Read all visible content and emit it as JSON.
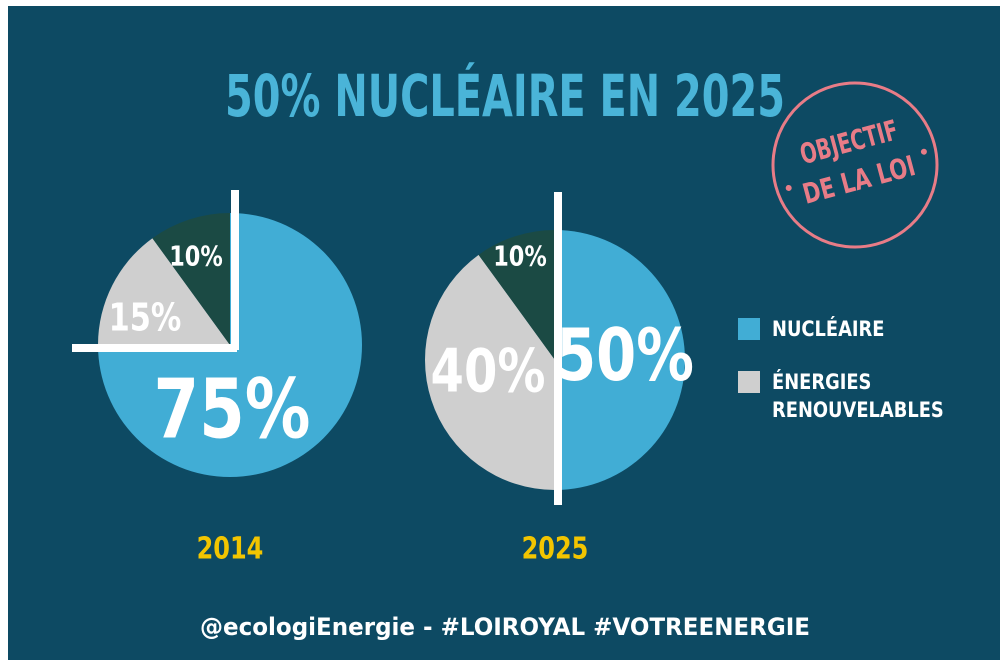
{
  "title": "50% NUCLÉAIRE EN 2025",
  "stamp": [
    "OBJECTIF",
    "DE LA LOI"
  ],
  "footer": "@ecologiEnergie - #LOIROYAL #VOTREENERGIE",
  "chart_data": [
    {
      "type": "pie",
      "title": "2014",
      "categories": [
        "NUCLÉAIRE",
        "ÉNERGIES RENOUVELABLES",
        null
      ],
      "values": [
        75,
        15,
        10
      ],
      "value_labels": [
        "75%",
        "15%",
        "10%"
      ],
      "colors": [
        "#41add5",
        "#cfcfcf",
        "#1b4a44"
      ]
    },
    {
      "type": "pie",
      "title": "2025",
      "categories": [
        "NUCLÉAIRE",
        "ÉNERGIES RENOUVELABLES",
        null
      ],
      "values": [
        50,
        40,
        10
      ],
      "value_labels": [
        "50%",
        "40%",
        "10%"
      ],
      "colors": [
        "#41add5",
        "#cfcfcf",
        "#1b4a44"
      ]
    }
  ]
}
